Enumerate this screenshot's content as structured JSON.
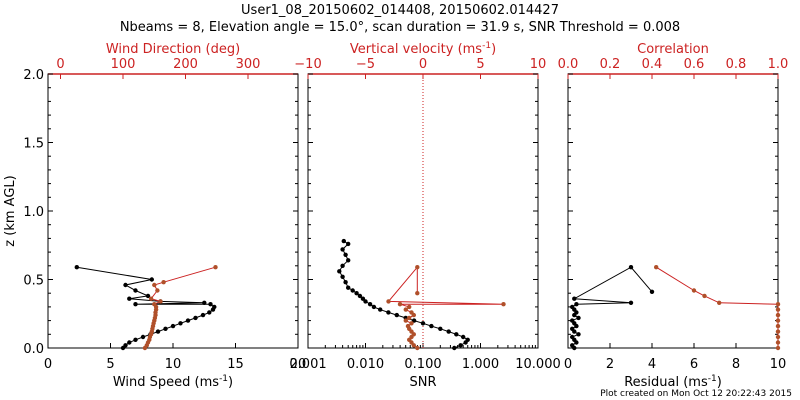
{
  "title_line1": "User1_08_20150602_014408, 20150602.014427",
  "title_line2": "Nbeams = 8, Elevation angle = 15.0°, scan duration = 31.9 s, SNR Threshold = 0.008",
  "footer": "Plot created on Mon Oct 12 20:22:43 2015",
  "colors": {
    "black": "#000000",
    "red": "#cc2222",
    "brown": "#b0502a"
  },
  "chart_data": [
    {
      "type": "scatter",
      "ylabel": "z (km AGL)",
      "ylim": [
        0,
        2.0
      ],
      "yticks": [
        "0.0",
        "0.5",
        "1.0",
        "1.5",
        "2.0"
      ],
      "bottom_axis": {
        "label": "Wind Speed (ms",
        "sup": "-1",
        "close": ")",
        "ticks": [
          "0",
          "5",
          "10",
          "15",
          "20"
        ],
        "lim": [
          0,
          20
        ]
      },
      "top_axis": {
        "label": "Wind Direction (deg)",
        "ticks": [
          "0",
          "100",
          "200",
          "300"
        ],
        "lim": [
          -20,
          380
        ]
      },
      "series": [
        {
          "kind": "wind_speed",
          "points": [
            [
              6.0,
              0.0
            ],
            [
              6.2,
              0.02
            ],
            [
              6.5,
              0.04
            ],
            [
              7.0,
              0.06
            ],
            [
              7.6,
              0.08
            ],
            [
              8.2,
              0.1
            ],
            [
              8.8,
              0.12
            ],
            [
              9.4,
              0.14
            ],
            [
              10.0,
              0.16
            ],
            [
              10.6,
              0.18
            ],
            [
              11.2,
              0.2
            ],
            [
              11.8,
              0.22
            ],
            [
              12.4,
              0.24
            ],
            [
              12.9,
              0.26
            ],
            [
              13.2,
              0.28
            ],
            [
              13.3,
              0.3
            ],
            [
              13.0,
              0.32
            ],
            [
              7.0,
              0.32
            ],
            [
              12.5,
              0.33
            ],
            [
              9.0,
              0.34
            ],
            [
              6.5,
              0.36
            ],
            [
              8.0,
              0.38
            ],
            [
              7.0,
              0.42
            ],
            [
              6.2,
              0.46
            ],
            [
              8.3,
              0.5
            ],
            [
              2.3,
              0.59
            ]
          ]
        },
        {
          "kind": "wind_direction",
          "points": [
            [
              135,
              0.0
            ],
            [
              138,
              0.02
            ],
            [
              140,
              0.04
            ],
            [
              142,
              0.06
            ],
            [
              143,
              0.08
            ],
            [
              145,
              0.1
            ],
            [
              146,
              0.12
            ],
            [
              147,
              0.14
            ],
            [
              148,
              0.16
            ],
            [
              149,
              0.18
            ],
            [
              150,
              0.2
            ],
            [
              151,
              0.22
            ],
            [
              152,
              0.24
            ],
            [
              152,
              0.26
            ],
            [
              153,
              0.28
            ],
            [
              153,
              0.3
            ],
            [
              150,
              0.32
            ],
            [
              160,
              0.34
            ],
            [
              145,
              0.36
            ],
            [
              155,
              0.42
            ],
            [
              150,
              0.46
            ],
            [
              165,
              0.48
            ],
            [
              248,
              0.59
            ]
          ]
        }
      ]
    },
    {
      "type": "scatter",
      "ylim": [
        0,
        2.0
      ],
      "bottom_axis": {
        "label": "SNR",
        "scale": "log",
        "ticks": [
          "0.001",
          "0.010",
          "0.100",
          "1.000",
          "10.000"
        ],
        "lim": [
          0.001,
          10
        ]
      },
      "top_axis": {
        "label": "Vertical velocity (ms",
        "sup": "-1",
        "close": ")",
        "ticks": [
          "−10",
          "−5",
          "0",
          "5",
          "10"
        ],
        "lim": [
          -10,
          10
        ]
      },
      "zero_line": 0,
      "series": [
        {
          "kind": "snr",
          "points": [
            [
              0.35,
              0.0
            ],
            [
              0.45,
              0.02
            ],
            [
              0.55,
              0.04
            ],
            [
              0.6,
              0.06
            ],
            [
              0.5,
              0.08
            ],
            [
              0.38,
              0.1
            ],
            [
              0.28,
              0.12
            ],
            [
              0.2,
              0.14
            ],
            [
              0.14,
              0.16
            ],
            [
              0.1,
              0.18
            ],
            [
              0.07,
              0.2
            ],
            [
              0.05,
              0.22
            ],
            [
              0.035,
              0.24
            ],
            [
              0.025,
              0.26
            ],
            [
              0.018,
              0.28
            ],
            [
              0.014,
              0.3
            ],
            [
              0.012,
              0.32
            ],
            [
              0.01,
              0.34
            ],
            [
              0.009,
              0.36
            ],
            [
              0.008,
              0.38
            ],
            [
              0.007,
              0.4
            ],
            [
              0.006,
              0.42
            ],
            [
              0.005,
              0.44
            ],
            [
              0.0045,
              0.48
            ],
            [
              0.004,
              0.52
            ],
            [
              0.0035,
              0.56
            ],
            [
              0.004,
              0.6
            ],
            [
              0.005,
              0.64
            ],
            [
              0.0045,
              0.68
            ],
            [
              0.004,
              0.72
            ],
            [
              0.005,
              0.76
            ],
            [
              0.0042,
              0.78
            ]
          ]
        },
        {
          "kind": "vertical_velocity",
          "points": [
            [
              -0.5,
              0.0
            ],
            [
              -0.8,
              0.02
            ],
            [
              -1.0,
              0.04
            ],
            [
              -1.2,
              0.06
            ],
            [
              -1.0,
              0.08
            ],
            [
              -0.8,
              0.1
            ],
            [
              -1.0,
              0.12
            ],
            [
              -1.2,
              0.14
            ],
            [
              -1.3,
              0.16
            ],
            [
              -1.0,
              0.18
            ],
            [
              -1.5,
              0.2
            ],
            [
              -1.2,
              0.22
            ],
            [
              -0.8,
              0.24
            ],
            [
              -1.0,
              0.26
            ],
            [
              -1.5,
              0.28
            ],
            [
              -1.2,
              0.3
            ],
            [
              -2.0,
              0.32
            ],
            [
              7.0,
              0.32
            ],
            [
              -3.0,
              0.34
            ],
            [
              -0.5,
              0.59
            ],
            [
              -0.5,
              0.4
            ]
          ]
        }
      ]
    },
    {
      "type": "scatter",
      "ylim": [
        0,
        2.0
      ],
      "bottom_axis": {
        "label": "Residual (ms",
        "sup": "-1",
        "close": ")",
        "ticks": [
          "0",
          "2",
          "4",
          "6",
          "8",
          "10"
        ],
        "lim": [
          0,
          10
        ]
      },
      "top_axis": {
        "label": "Correlation",
        "ticks": [
          "0.0",
          "0.2",
          "0.4",
          "0.6",
          "0.8",
          "1.0"
        ],
        "lim": [
          0,
          1
        ]
      },
      "series": [
        {
          "kind": "residual",
          "points": [
            [
              0.3,
              0.0
            ],
            [
              0.2,
              0.02
            ],
            [
              0.4,
              0.04
            ],
            [
              0.3,
              0.06
            ],
            [
              0.2,
              0.08
            ],
            [
              0.5,
              0.1
            ],
            [
              0.3,
              0.12
            ],
            [
              0.2,
              0.14
            ],
            [
              0.4,
              0.16
            ],
            [
              0.3,
              0.18
            ],
            [
              0.2,
              0.2
            ],
            [
              0.5,
              0.22
            ],
            [
              0.3,
              0.24
            ],
            [
              0.4,
              0.26
            ],
            [
              0.3,
              0.28
            ],
            [
              0.2,
              0.3
            ],
            [
              0.4,
              0.32
            ],
            [
              3.0,
              0.33
            ],
            [
              0.3,
              0.36
            ],
            [
              3.0,
              0.59
            ],
            [
              4.0,
              0.41
            ]
          ]
        },
        {
          "kind": "correlation",
          "points": [
            [
              1.0,
              0.0
            ],
            [
              1.0,
              0.04
            ],
            [
              1.0,
              0.08
            ],
            [
              1.0,
              0.12
            ],
            [
              1.0,
              0.16
            ],
            [
              1.0,
              0.2
            ],
            [
              1.0,
              0.24
            ],
            [
              1.0,
              0.28
            ],
            [
              1.0,
              0.32
            ],
            [
              0.72,
              0.33
            ],
            [
              0.65,
              0.38
            ],
            [
              0.6,
              0.42
            ],
            [
              0.42,
              0.59
            ]
          ]
        }
      ]
    }
  ]
}
